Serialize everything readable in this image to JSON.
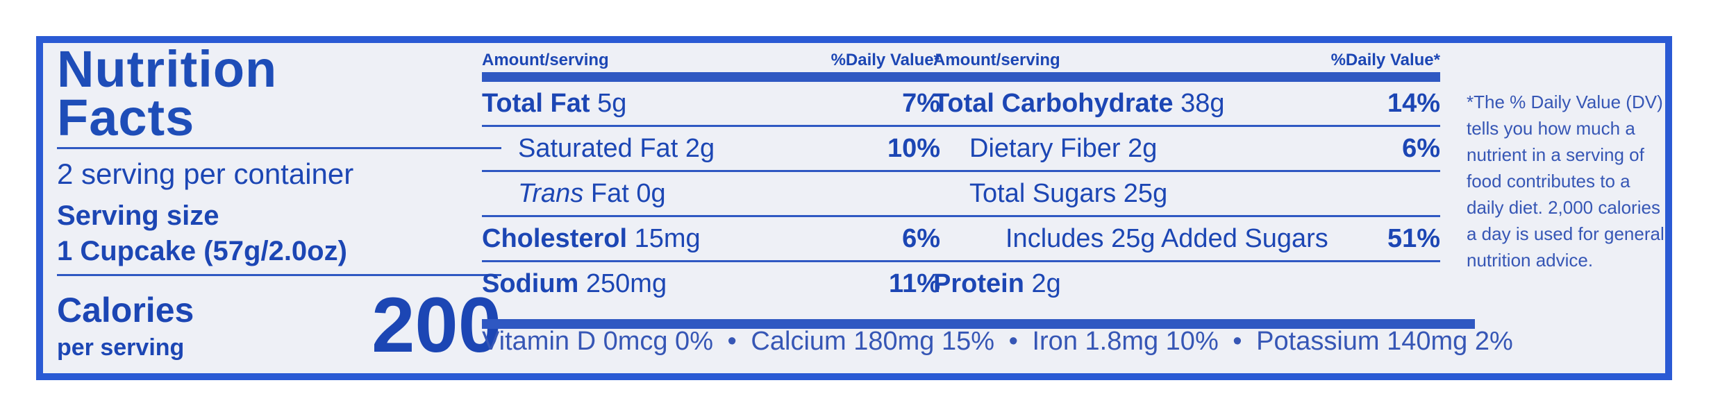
{
  "title_line1": "Nutrition",
  "title_line2": "Facts",
  "servings_per_container": "2 serving per container",
  "serving_size_label": "Serving size",
  "serving_size_value": "1 Cupcake (57g/2.0oz)",
  "calories_label": "Calories",
  "calories_sub": "per serving",
  "calories_value": "200",
  "header_amount": "Amount/serving",
  "header_dv": "%Daily Value*",
  "mid_rows": [
    {
      "name": "Total Fat",
      "amount": "5g",
      "dv": "7%"
    },
    {
      "name": "Saturated Fat",
      "amount": "2g",
      "dv": "10%"
    },
    {
      "name": "Trans",
      "name_rest": "Fat",
      "amount": "0g",
      "dv": ""
    },
    {
      "name": "Cholesterol",
      "amount": "15mg",
      "dv": "6%"
    },
    {
      "name": "Sodium",
      "amount": "250mg",
      "dv": "11%"
    }
  ],
  "right_rows": [
    {
      "name": "Total Carbohydrate",
      "amount": "38g",
      "dv": "14%"
    },
    {
      "name": "Dietary Fiber",
      "amount": "2g",
      "dv": "6%"
    },
    {
      "name": "Total Sugars",
      "amount": "25g",
      "dv": ""
    },
    {
      "name": "Includes 25g Added Sugars",
      "amount": "",
      "dv": "51%"
    },
    {
      "name": "Protein",
      "amount": "2g",
      "dv": ""
    }
  ],
  "vitamins": [
    "Vitamin D 0mcg 0%",
    "Calcium 180mg 15%",
    "Iron 1.8mg 10%",
    "Potassium 140mg 2%"
  ],
  "separator": "•",
  "footnote": "*The % Daily Value (DV) tells you how much a nutrient in a serving of food contributes to a daily diet. 2,000 calories a day is used for general nutrition advice."
}
